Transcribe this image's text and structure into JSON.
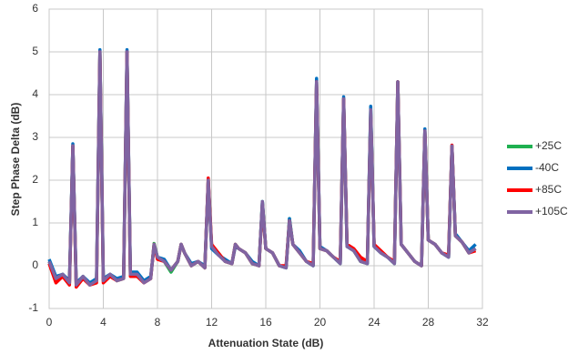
{
  "chart_data": {
    "type": "line",
    "x_label": "Attenuation State (dB)",
    "y_label": "Step Phase Delta (dB)",
    "x": [
      0,
      0.5,
      1,
      1.5,
      1.75,
      2,
      2.5,
      3,
      3.5,
      3.75,
      4,
      4.5,
      5,
      5.5,
      5.75,
      6,
      6.5,
      7,
      7.5,
      7.75,
      8,
      8.5,
      9,
      9.5,
      9.75,
      10,
      10.5,
      11,
      11.5,
      11.75,
      12,
      12.5,
      13,
      13.5,
      13.75,
      14,
      14.5,
      15,
      15.5,
      15.75,
      16,
      16.5,
      17,
      17.5,
      17.75,
      18,
      18.5,
      19,
      19.5,
      19.75,
      20,
      20.5,
      21,
      21.5,
      21.75,
      22,
      22.5,
      23,
      23.5,
      23.75,
      24,
      24.5,
      25,
      25.5,
      25.75,
      26,
      26.5,
      27,
      27.5,
      27.75,
      28,
      28.5,
      29,
      29.5,
      29.75,
      30,
      30.5,
      31,
      31.5
    ],
    "series": [
      {
        "name": "+25C",
        "color": "#1fb050",
        "values": [
          0.1,
          -0.3,
          -0.2,
          -0.4,
          2.8,
          -0.45,
          -0.25,
          -0.45,
          -0.35,
          5.0,
          -0.35,
          -0.2,
          -0.35,
          -0.3,
          5.0,
          -0.2,
          -0.2,
          -0.35,
          -0.3,
          0.52,
          0.2,
          0.1,
          -0.15,
          0.1,
          0.5,
          0.3,
          0.0,
          0.1,
          -0.05,
          2.0,
          0.45,
          0.3,
          0.1,
          0.05,
          0.5,
          0.4,
          0.3,
          0.05,
          0.0,
          1.5,
          0.4,
          0.3,
          0.0,
          -0.05,
          1.1,
          0.5,
          0.3,
          0.1,
          0.0,
          4.3,
          0.4,
          0.35,
          0.2,
          0.05,
          3.9,
          0.45,
          0.35,
          0.1,
          0.05,
          3.65,
          0.45,
          0.3,
          0.2,
          0.05,
          4.3,
          0.5,
          0.3,
          0.1,
          0.0,
          3.15,
          0.6,
          0.5,
          0.3,
          0.2,
          2.8,
          0.7,
          0.55,
          0.3,
          0.4
        ]
      },
      {
        "name": "-40C",
        "color": "#0070c0",
        "values": [
          0.15,
          -0.25,
          -0.2,
          -0.35,
          2.85,
          -0.4,
          -0.25,
          -0.4,
          -0.3,
          5.05,
          -0.3,
          -0.2,
          -0.3,
          -0.25,
          5.05,
          -0.15,
          -0.15,
          -0.35,
          -0.25,
          0.45,
          0.2,
          0.15,
          -0.1,
          0.1,
          0.5,
          0.3,
          0.05,
          0.1,
          0.0,
          2.0,
          0.4,
          0.25,
          0.15,
          0.05,
          0.45,
          0.4,
          0.3,
          0.1,
          0.0,
          1.5,
          0.4,
          0.3,
          0.0,
          -0.05,
          1.1,
          0.5,
          0.35,
          0.1,
          0.0,
          4.38,
          0.45,
          0.35,
          0.2,
          0.05,
          3.95,
          0.45,
          0.35,
          0.15,
          0.05,
          3.73,
          0.45,
          0.3,
          0.2,
          0.05,
          4.3,
          0.5,
          0.3,
          0.1,
          0.0,
          3.2,
          0.6,
          0.5,
          0.3,
          0.2,
          2.8,
          0.75,
          0.55,
          0.35,
          0.5
        ]
      },
      {
        "name": "+85C",
        "color": "#ff0000",
        "values": [
          0.05,
          -0.4,
          -0.25,
          -0.45,
          2.8,
          -0.5,
          -0.3,
          -0.45,
          -0.4,
          5.0,
          -0.4,
          -0.25,
          -0.35,
          -0.3,
          5.0,
          -0.25,
          -0.25,
          -0.4,
          -0.3,
          0.5,
          0.15,
          0.1,
          -0.1,
          0.1,
          0.5,
          0.3,
          0.0,
          0.1,
          -0.05,
          2.05,
          0.5,
          0.3,
          0.1,
          0.05,
          0.5,
          0.4,
          0.3,
          0.05,
          0.0,
          1.45,
          0.4,
          0.3,
          0.0,
          0.0,
          1.05,
          0.5,
          0.3,
          0.1,
          0.05,
          4.3,
          0.4,
          0.35,
          0.2,
          0.1,
          3.9,
          0.5,
          0.4,
          0.2,
          0.1,
          3.55,
          0.5,
          0.35,
          0.2,
          0.1,
          4.3,
          0.5,
          0.3,
          0.1,
          0.0,
          3.15,
          0.6,
          0.5,
          0.3,
          0.25,
          2.82,
          0.7,
          0.55,
          0.3,
          0.35
        ]
      },
      {
        "name": "+105C",
        "color": "#8064a2",
        "values": [
          0.1,
          -0.3,
          -0.2,
          -0.4,
          2.8,
          -0.45,
          -0.25,
          -0.45,
          -0.35,
          5.0,
          -0.35,
          -0.2,
          -0.35,
          -0.3,
          5.0,
          -0.2,
          -0.2,
          -0.4,
          -0.3,
          0.5,
          0.2,
          0.1,
          -0.1,
          0.1,
          0.5,
          0.3,
          0.0,
          0.1,
          -0.05,
          2.0,
          0.45,
          0.25,
          0.1,
          0.05,
          0.5,
          0.4,
          0.3,
          0.05,
          0.0,
          1.5,
          0.4,
          0.3,
          0.0,
          -0.05,
          1.05,
          0.5,
          0.3,
          0.1,
          0.0,
          4.3,
          0.4,
          0.35,
          0.2,
          0.05,
          3.9,
          0.45,
          0.35,
          0.1,
          0.05,
          3.65,
          0.45,
          0.3,
          0.2,
          0.05,
          4.3,
          0.5,
          0.3,
          0.1,
          0.0,
          3.15,
          0.6,
          0.5,
          0.3,
          0.2,
          2.8,
          0.7,
          0.55,
          0.3,
          0.4
        ]
      }
    ],
    "xlim": [
      0,
      32
    ],
    "xticks": [
      0,
      4,
      8,
      12,
      16,
      20,
      24,
      28,
      32
    ],
    "ylim": [
      -1,
      6
    ],
    "yticks": [
      -1,
      0,
      1,
      2,
      3,
      4,
      5,
      6
    ],
    "grid": true,
    "legend": "right"
  }
}
